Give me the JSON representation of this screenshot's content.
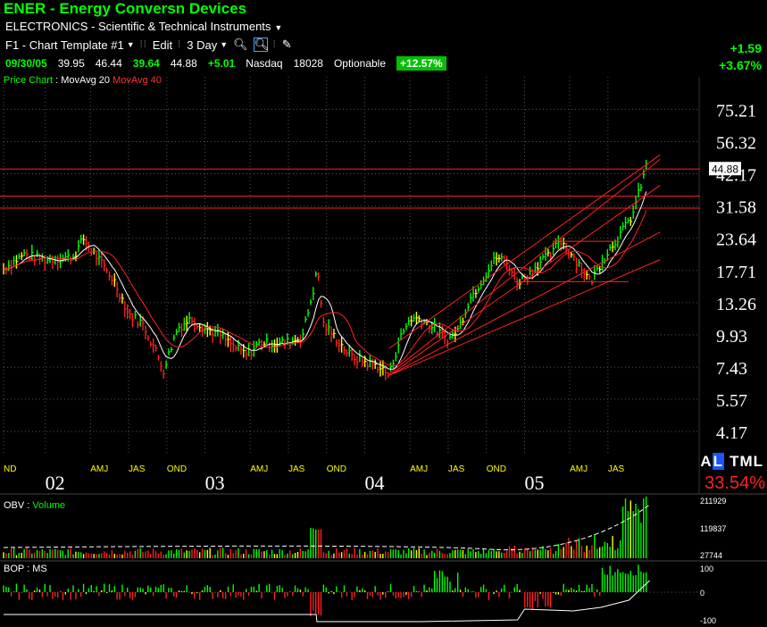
{
  "header": {
    "symbol_line": "ENER  -  Energy Conversn Devices",
    "sector": "ELECTRONICS - Scientific & Technical Instruments",
    "template": "F1 - Chart Template #1",
    "edit": "Edit",
    "period": "3 Day",
    "change_abs": "+1.59",
    "change_pct": "+3.67%"
  },
  "quote": {
    "date": "09/30/05",
    "open": "39.95",
    "high": "46.44",
    "low": "39.64",
    "close": "44.88",
    "change": "+5.01",
    "exchange": "Nasdaq",
    "volume": "18028",
    "optionable": "Optionable",
    "badge": "+12.57%"
  },
  "legends": {
    "price_chart": "Price Chart",
    "colon": " : ",
    "movavg20": "MovAvg 20",
    "movavg40": "MovAvg 40",
    "obv": "OBV",
    "volume": "Volume",
    "bop": "BOP",
    "ms": "MS"
  },
  "right_panel": {
    "a": "A",
    "l": "L",
    "tml": "TML",
    "pct": "33.54%"
  },
  "colors": {
    "up": "#00ff00",
    "down": "#ff2020",
    "neutral": "#ffff00",
    "movavg20": "#ffffff",
    "movavg40": "#ff2020",
    "trendline": "#ff2020",
    "badge": "#00c000",
    "grid": "#555555"
  },
  "chart_data": {
    "type": "line",
    "scale": "log",
    "y_ticks": [
      "75.21",
      "56.32",
      "42.17",
      "31.58",
      "23.64",
      "17.71",
      "13.26",
      "9.93",
      "7.43",
      "5.57",
      "4.17"
    ],
    "y_tick_values": [
      75.21,
      56.32,
      42.17,
      31.58,
      23.64,
      17.71,
      13.26,
      9.93,
      7.43,
      5.57,
      4.17
    ],
    "last_price_label": "44.88",
    "x_labels": [
      {
        "label": "ND",
        "t": 0.0,
        "year": false
      },
      {
        "label": "02",
        "t": 0.06,
        "year": true
      },
      {
        "label": "AMJ",
        "t": 0.125,
        "year": false
      },
      {
        "label": "JAS",
        "t": 0.18,
        "year": false
      },
      {
        "label": "OND",
        "t": 0.235,
        "year": false
      },
      {
        "label": "03",
        "t": 0.29,
        "year": true
      },
      {
        "label": "AMJ",
        "t": 0.355,
        "year": false
      },
      {
        "label": "JAS",
        "t": 0.41,
        "year": false
      },
      {
        "label": "OND",
        "t": 0.465,
        "year": false
      },
      {
        "label": "04",
        "t": 0.52,
        "year": true
      },
      {
        "label": "AMJ",
        "t": 0.585,
        "year": false
      },
      {
        "label": "JAS",
        "t": 0.64,
        "year": false
      },
      {
        "label": "OND",
        "t": 0.695,
        "year": false
      },
      {
        "label": "05",
        "t": 0.75,
        "year": true
      },
      {
        "label": "AMJ",
        "t": 0.815,
        "year": false
      },
      {
        "label": "JAS",
        "t": 0.87,
        "year": false
      }
    ],
    "price_keypoints": [
      [
        0.0,
        18.0
      ],
      [
        0.03,
        20.5
      ],
      [
        0.06,
        19.5
      ],
      [
        0.1,
        20.0
      ],
      [
        0.115,
        23.5
      ],
      [
        0.14,
        19.0
      ],
      [
        0.16,
        16.0
      ],
      [
        0.18,
        12.0
      ],
      [
        0.2,
        11.0
      ],
      [
        0.22,
        8.5
      ],
      [
        0.23,
        7.2
      ],
      [
        0.25,
        10.5
      ],
      [
        0.27,
        11.5
      ],
      [
        0.29,
        10.5
      ],
      [
        0.31,
        10.0
      ],
      [
        0.33,
        9.0
      ],
      [
        0.35,
        8.3
      ],
      [
        0.37,
        9.3
      ],
      [
        0.39,
        9.2
      ],
      [
        0.41,
        9.3
      ],
      [
        0.43,
        9.8
      ],
      [
        0.445,
        14.5
      ],
      [
        0.452,
        18.0
      ],
      [
        0.46,
        11.0
      ],
      [
        0.48,
        9.5
      ],
      [
        0.5,
        8.2
      ],
      [
        0.52,
        7.8
      ],
      [
        0.54,
        7.5
      ],
      [
        0.555,
        6.9
      ],
      [
        0.57,
        9.5
      ],
      [
        0.585,
        11.5
      ],
      [
        0.6,
        11.5
      ],
      [
        0.62,
        10.5
      ],
      [
        0.64,
        9.5
      ],
      [
        0.655,
        10.5
      ],
      [
        0.67,
        13.5
      ],
      [
        0.69,
        16.5
      ],
      [
        0.71,
        20.0
      ],
      [
        0.725,
        19.0
      ],
      [
        0.74,
        16.0
      ],
      [
        0.755,
        17.0
      ],
      [
        0.775,
        19.5
      ],
      [
        0.79,
        20.5
      ],
      [
        0.8,
        23.5
      ],
      [
        0.815,
        21.0
      ],
      [
        0.83,
        18.5
      ],
      [
        0.845,
        16.0
      ],
      [
        0.86,
        19.0
      ],
      [
        0.875,
        22.0
      ],
      [
        0.89,
        25.0
      ],
      [
        0.905,
        29.0
      ],
      [
        0.915,
        36.0
      ],
      [
        0.925,
        44.88
      ]
    ],
    "horizontal_lines": [
      44.0,
      34.5,
      31.0
    ],
    "obv_ticks": [
      "211929",
      "119837",
      "27744"
    ],
    "bop_ticks": [
      "100",
      "0",
      "-100"
    ]
  }
}
